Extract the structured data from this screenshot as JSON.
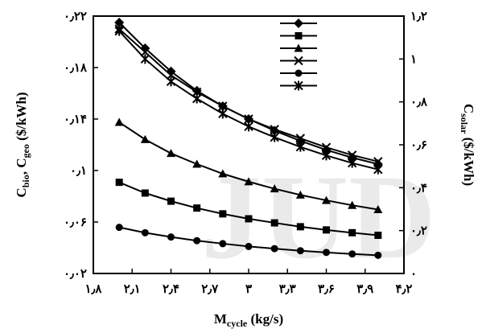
{
  "chart_data": {
    "type": "line",
    "title": "",
    "watermark": "JUD",
    "xlabel": {
      "main": "M",
      "sub": "cycle",
      "unit": " (kg/s)"
    },
    "ylabel_left": {
      "p1": "C",
      "s1": "bio",
      "p2": ", C",
      "s2": "geo",
      "unit": " ($/kWh)"
    },
    "ylabel_right": {
      "p1": "C",
      "s1": "solar",
      "unit": " ($/kWh)"
    },
    "xlim": [
      1.8,
      4.2
    ],
    "ylim_left": [
      0.02,
      0.22
    ],
    "ylim_right": [
      0,
      1.2
    ],
    "x_ticks": [
      {
        "value": 1.8,
        "label": "۱٫۸"
      },
      {
        "value": 2.1,
        "label": "۲٫۱"
      },
      {
        "value": 2.4,
        "label": "۲٫۴"
      },
      {
        "value": 2.7,
        "label": "۲٫۷"
      },
      {
        "value": 3.0,
        "label": "۳"
      },
      {
        "value": 3.3,
        "label": "۳٫۳"
      },
      {
        "value": 3.6,
        "label": "۳٫۶"
      },
      {
        "value": 3.9,
        "label": "۳٫۹"
      },
      {
        "value": 4.2,
        "label": "۴٫۲"
      }
    ],
    "y_left_ticks": [
      {
        "value": 0.02,
        "label": "۰٫۰۲"
      },
      {
        "value": 0.06,
        "label": "۰٫۰۶"
      },
      {
        "value": 0.1,
        "label": "۰٫۱"
      },
      {
        "value": 0.14,
        "label": "۰٫۱۴"
      },
      {
        "value": 0.18,
        "label": "۰٫۱۸"
      },
      {
        "value": 0.22,
        "label": "۰٫۲۲"
      }
    ],
    "y_right_ticks": [
      {
        "value": 0.0,
        "label": "۰"
      },
      {
        "value": 0.2,
        "label": "۰٫۲"
      },
      {
        "value": 0.4,
        "label": "۰٫۴"
      },
      {
        "value": 0.6,
        "label": "۰٫۶"
      },
      {
        "value": 0.8,
        "label": "۰٫۸"
      },
      {
        "value": 1.0,
        "label": "۱"
      },
      {
        "value": 1.2,
        "label": "۱٫۲"
      }
    ],
    "x": [
      2.0,
      2.2,
      2.4,
      2.6,
      2.8,
      3.0,
      3.2,
      3.4,
      3.6,
      3.8,
      4.0
    ],
    "legend": {
      "position": "top-right",
      "entries": [
        "",
        "",
        "",
        "",
        "",
        ""
      ]
    },
    "series": [
      {
        "marker": "diamond",
        "axis": "left",
        "values": [
          0.215,
          0.195,
          0.177,
          0.162,
          0.15,
          0.14,
          0.131,
          0.123,
          0.116,
          0.11,
          0.105
        ]
      },
      {
        "marker": "square",
        "axis": "right",
        "values": [
          0.425,
          0.375,
          0.337,
          0.305,
          0.278,
          0.255,
          0.236,
          0.218,
          0.203,
          0.19,
          0.178
        ]
      },
      {
        "marker": "triangle",
        "axis": "right",
        "values": [
          0.705,
          0.625,
          0.56,
          0.51,
          0.465,
          0.428,
          0.395,
          0.366,
          0.341,
          0.318,
          0.298
        ]
      },
      {
        "marker": "x",
        "axis": "left",
        "values": [
          0.21,
          0.192,
          0.174,
          0.161,
          0.15,
          0.14,
          0.132,
          0.125,
          0.118,
          0.112,
          0.107
        ]
      },
      {
        "marker": "circle",
        "axis": "right",
        "values": [
          0.215,
          0.19,
          0.17,
          0.153,
          0.139,
          0.126,
          0.116,
          0.106,
          0.098,
          0.091,
          0.085
        ]
      },
      {
        "marker": "star",
        "axis": "right",
        "values": [
          1.13,
          1.0,
          0.895,
          0.815,
          0.745,
          0.685,
          0.635,
          0.59,
          0.55,
          0.515,
          0.485
        ]
      }
    ]
  }
}
